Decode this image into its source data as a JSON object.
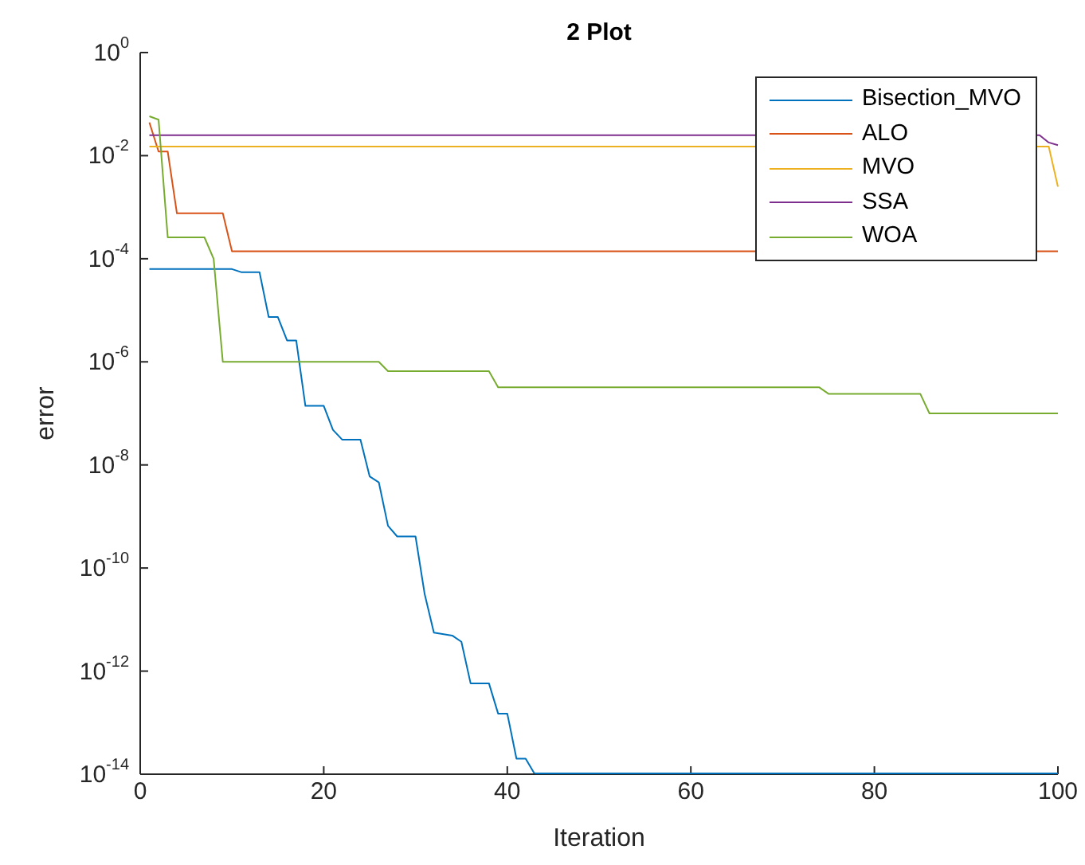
{
  "chart_data": {
    "type": "line",
    "title": "2 Plot",
    "xlabel": "Iteration",
    "ylabel": "error",
    "log": "y",
    "grid": false,
    "legend": "top right",
    "marker": "none",
    "line_style": "solid",
    "xlim": [
      0,
      100
    ],
    "xticks": [
      0,
      20,
      40,
      60,
      80,
      100
    ],
    "ylim": [
      1e-14,
      1
    ],
    "yticks": [
      {
        "value": 1,
        "label": "10$^{0}$"
      },
      {
        "value": 0.01,
        "label": "10$^{-2}$"
      },
      {
        "value": 0.0001,
        "label": "10$^{-4}$"
      },
      {
        "value": 1e-06,
        "label": "10$^{-6}$"
      },
      {
        "value": 1e-08,
        "label": "10$^{-8}$"
      },
      {
        "value": 1e-10,
        "label": "10$^{-10}$"
      },
      {
        "value": 1e-12,
        "label": "10$^{-12}$"
      },
      {
        "value": 1e-14,
        "label": "10$^{-14}$"
      }
    ],
    "series": [
      {
        "name": "Bisection_MVO",
        "color": "#0072bd",
        "x": [
          1,
          10,
          11,
          13,
          14,
          15,
          16,
          17,
          18,
          20,
          21,
          22,
          24,
          25,
          26,
          27,
          28,
          30,
          31,
          32,
          34,
          35,
          36,
          38,
          39,
          40,
          41,
          42,
          43,
          100
        ],
        "values": [
          6.3e-05,
          6.3e-05,
          5.5e-05,
          5.5e-05,
          7.4e-06,
          7.4e-06,
          2.6e-06,
          2.6e-06,
          1.4e-07,
          1.4e-07,
          4.8e-08,
          3.1e-08,
          3.1e-08,
          6e-09,
          4.6e-09,
          6.6e-10,
          4.1e-10,
          4.1e-10,
          3.1e-11,
          5.6e-12,
          4.9e-12,
          3.7e-12,
          5.8e-13,
          5.8e-13,
          1.5e-13,
          1.5e-13,
          2e-14,
          2e-14,
          1e-14,
          1e-14
        ]
      },
      {
        "name": "ALO",
        "color": "#d95319",
        "x": [
          1,
          2,
          3,
          4,
          9,
          10,
          100
        ],
        "values": [
          0.044,
          0.012,
          0.012,
          0.00076,
          0.00076,
          0.00014,
          0.00014
        ]
      },
      {
        "name": "MVO",
        "color": "#edb120",
        "x": [
          1,
          99,
          100
        ],
        "values": [
          0.015,
          0.015,
          0.0025
        ]
      },
      {
        "name": "SSA",
        "color": "#7e2f8e",
        "x": [
          1,
          98,
          99,
          100
        ],
        "values": [
          0.025,
          0.025,
          0.018,
          0.016
        ]
      },
      {
        "name": "WOA",
        "color": "#77ac30",
        "x": [
          1,
          2,
          3,
          7,
          8,
          9,
          26,
          27,
          38,
          39,
          74,
          75,
          85,
          86,
          100
        ],
        "values": [
          0.058,
          0.05,
          0.00026,
          0.00026,
          0.0001,
          1e-06,
          1e-06,
          6.6e-07,
          6.6e-07,
          3.2e-07,
          3.2e-07,
          2.4e-07,
          2.4e-07,
          1e-07,
          1e-07
        ]
      }
    ]
  }
}
